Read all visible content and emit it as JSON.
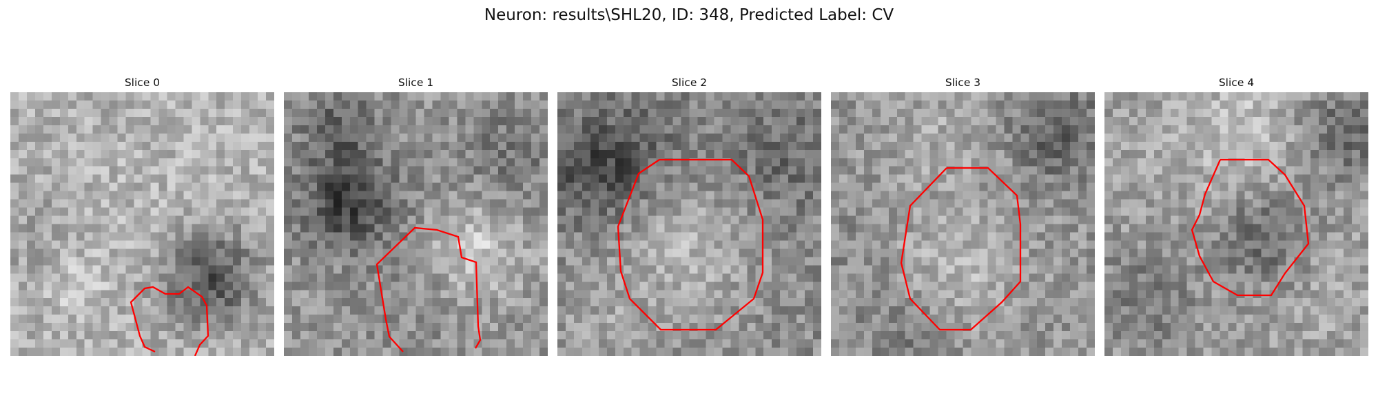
{
  "figure": {
    "title": "Neuron: results\\SHL20, ID: 348, Predicted Label: CV"
  },
  "panels": [
    {
      "title": "Slice 0",
      "contour_color": "#ff0000"
    },
    {
      "title": "Slice 1",
      "contour_color": "#ff0000"
    },
    {
      "title": "Slice 2",
      "contour_color": "#ff0000"
    },
    {
      "title": "Slice 3",
      "contour_color": "#ff0000"
    },
    {
      "title": "Slice 4",
      "contour_color": "#ff0000"
    }
  ]
}
